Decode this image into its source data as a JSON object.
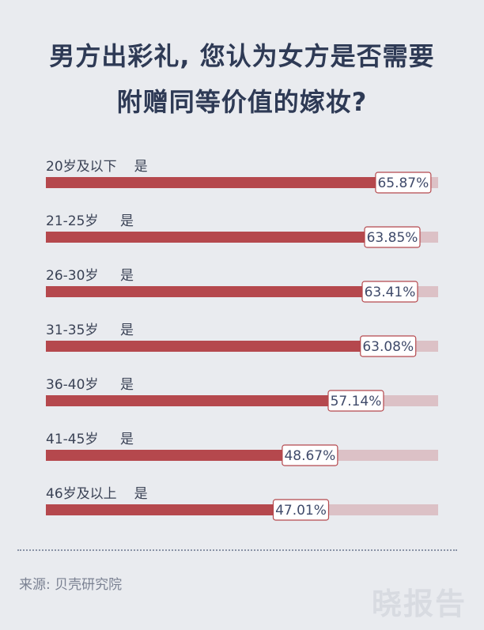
{
  "title": {
    "line1": "男方出彩礼, 您认为女方是否需要",
    "line2": "附赠同等价值的嫁妆?"
  },
  "colors": {
    "background": "#e9ebef",
    "bar": "#b5484d",
    "track": "#dcc1c6",
    "title": "#2e3a55",
    "label": "#3a4255",
    "value_text": "#3f4a6a",
    "value_border": "#b5484d"
  },
  "chart_data": {
    "type": "bar",
    "orientation": "horizontal",
    "xlim": [
      0,
      100
    ],
    "rows": [
      {
        "group": "20岁及以下",
        "answer": "是",
        "value": 65.87,
        "value_label": "65.87%"
      },
      {
        "group": "21-25岁",
        "answer": "是",
        "value": 63.85,
        "value_label": "63.85%"
      },
      {
        "group": "26-30岁",
        "answer": "是",
        "value": 63.41,
        "value_label": "63.41%"
      },
      {
        "group": "31-35岁",
        "answer": "是",
        "value": 63.08,
        "value_label": "63.08%"
      },
      {
        "group": "36-40岁",
        "answer": "是",
        "value": 57.14,
        "value_label": "57.14%"
      },
      {
        "group": "41-45岁",
        "answer": "是",
        "value": 48.67,
        "value_label": "48.67%"
      },
      {
        "group": "46岁及以上",
        "answer": "是",
        "value": 47.01,
        "value_label": "47.01%"
      }
    ]
  },
  "footer": {
    "source": "来源: 贝壳研究院",
    "watermark": "晓报告"
  }
}
